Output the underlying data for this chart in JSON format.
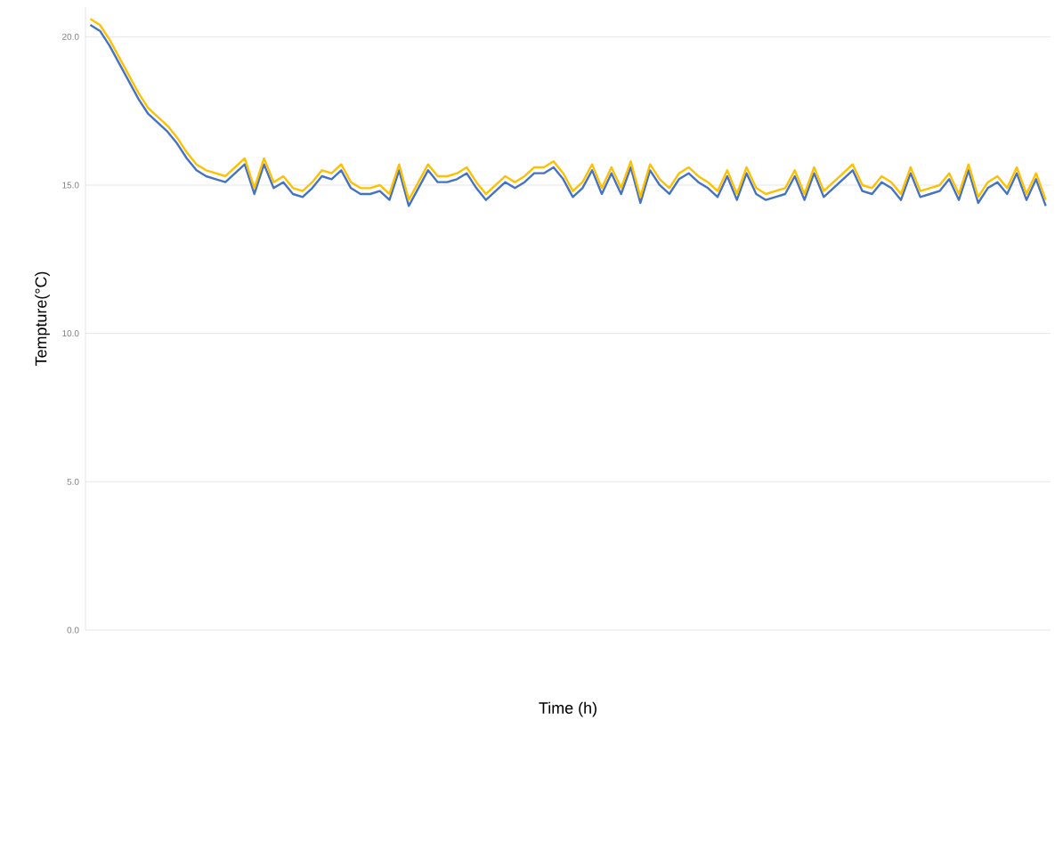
{
  "chart_data": {
    "type": "line",
    "xlabel": "Time (h)",
    "ylabel": "Tempture(°C)",
    "categories": [
      null,
      null,
      null,
      null,
      null,
      null,
      null,
      null,
      null,
      null,
      null,
      null,
      null,
      null,
      null,
      null,
      null,
      null,
      null,
      null,
      null,
      null,
      null,
      null,
      null,
      null,
      null,
      null,
      null,
      null,
      null,
      null,
      null,
      null,
      null,
      null,
      null,
      null,
      null,
      null,
      null,
      null,
      null,
      null,
      null,
      null,
      null,
      null,
      null,
      null,
      null,
      null,
      null,
      null,
      null,
      null,
      null,
      null,
      null,
      null,
      null,
      null,
      null,
      null,
      null,
      null,
      null,
      null,
      null,
      null,
      null,
      null,
      null,
      null,
      null,
      null,
      null,
      null,
      null,
      null,
      null,
      null,
      null,
      null,
      null,
      null,
      null,
      null,
      null,
      null,
      null,
      null,
      null,
      null,
      null,
      null,
      null,
      null,
      null,
      null
    ],
    "series": [
      {
        "color": "#4472c4",
        "values": [
          20.4,
          20.2,
          19.7,
          19.1,
          18.5,
          17.9,
          17.4,
          17.1,
          16.8,
          16.4,
          15.9,
          15.5,
          15.3,
          15.2,
          15.1,
          15.4,
          15.7,
          14.7,
          15.7,
          14.9,
          15.1,
          14.7,
          14.6,
          14.9,
          15.3,
          15.2,
          15.5,
          14.9,
          14.7,
          14.7,
          14.8,
          14.5,
          15.5,
          14.3,
          14.9,
          15.5,
          15.1,
          15.1,
          15.2,
          15.4,
          14.9,
          14.5,
          14.8,
          15.1,
          14.9,
          15.1,
          15.4,
          15.4,
          15.6,
          15.2,
          14.6,
          14.9,
          15.5,
          14.7,
          15.4,
          14.7,
          15.6,
          14.4,
          15.5,
          15.0,
          14.7,
          15.2,
          15.4,
          15.1,
          14.9,
          14.6,
          15.3,
          14.5,
          15.4,
          14.7,
          14.5,
          14.6,
          14.7,
          15.3,
          14.5,
          15.4,
          14.6,
          14.9,
          15.2,
          15.5,
          14.8,
          14.7,
          15.1,
          14.9,
          14.5,
          15.4,
          14.6,
          14.7,
          14.8,
          15.2,
          14.5,
          15.5,
          14.4,
          14.9,
          15.1,
          14.7,
          15.4,
          14.5,
          15.2,
          14.3
        ]
      },
      {
        "color": "#ffc000",
        "values": [
          20.6,
          20.4,
          19.9,
          19.3,
          18.7,
          18.1,
          17.6,
          17.3,
          17.0,
          16.6,
          16.1,
          15.7,
          15.5,
          15.4,
          15.3,
          15.6,
          15.9,
          14.9,
          15.9,
          15.1,
          15.3,
          14.9,
          14.8,
          15.1,
          15.5,
          15.4,
          15.7,
          15.1,
          14.9,
          14.9,
          15.0,
          14.7,
          15.7,
          14.5,
          15.1,
          15.7,
          15.3,
          15.3,
          15.4,
          15.6,
          15.1,
          14.7,
          15.0,
          15.3,
          15.1,
          15.3,
          15.6,
          15.6,
          15.8,
          15.4,
          14.8,
          15.1,
          15.7,
          14.9,
          15.6,
          14.9,
          15.8,
          14.6,
          15.7,
          15.2,
          14.9,
          15.4,
          15.6,
          15.3,
          15.1,
          14.8,
          15.5,
          14.7,
          15.6,
          14.9,
          14.7,
          14.8,
          14.9,
          15.5,
          14.7,
          15.6,
          14.8,
          15.1,
          15.4,
          15.7,
          15.0,
          14.9,
          15.3,
          15.1,
          14.7,
          15.6,
          14.8,
          14.9,
          15.0,
          15.4,
          14.7,
          15.7,
          14.6,
          15.1,
          15.3,
          14.9,
          15.6,
          14.7,
          15.4,
          14.5
        ]
      }
    ],
    "ylim": [
      0,
      21
    ],
    "yticks": [
      {
        "value": 0,
        "label": "0.0"
      },
      {
        "value": 5,
        "label": "5.0"
      },
      {
        "value": 10,
        "label": "10.0"
      },
      {
        "value": 15,
        "label": "15.0"
      },
      {
        "value": 20,
        "label": "20.0"
      }
    ],
    "grid": "y",
    "tick_labels": "y",
    "marker": "none",
    "line_style": "solid"
  }
}
